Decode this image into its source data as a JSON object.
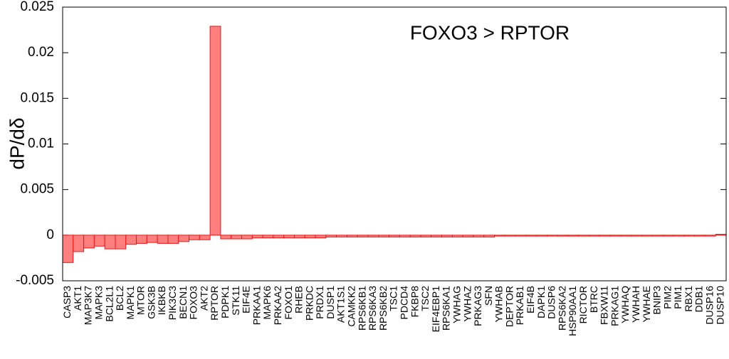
{
  "chart_data": {
    "type": "bar",
    "annotation": "FOXO3 > RPTOR",
    "y_label": "dP/dδ",
    "categories": [
      "CASP3",
      "AKT1",
      "MAP3K7",
      "MAPK3",
      "BCL2L1",
      "BCL2",
      "MAPK1",
      "MTOR",
      "GSK3B",
      "IKBKB",
      "PIK3C3",
      "BECN1",
      "FOXO3",
      "AKT2",
      "RPTOR",
      "PDPK1",
      "STK11",
      "EIF4E",
      "PRKAA1",
      "MAPK6",
      "PRKAA2",
      "FOXO1",
      "RHEB",
      "PRKDC",
      "PRDX1",
      "DUSP1",
      "AKT1S1",
      "CAMKK2",
      "RPS6KB1",
      "RPS6KA3",
      "RPS6KB2",
      "TSC1",
      "PDCD4",
      "FKBP8",
      "TSC2",
      "EIF4EBP1",
      "RPS6KA1",
      "YWHAG",
      "YWHAZ",
      "PRKAG3",
      "SFN",
      "YWHAB",
      "DEPTOR",
      "PRKAB1",
      "EIF4B",
      "DAPK1",
      "DUSP6",
      "RPS6KA2",
      "HSP90AA1",
      "RICTOR",
      "BTRC",
      "FBXW11",
      "PRKAG1",
      "YWHAQ",
      "YWHAH",
      "YWHAE",
      "BNIP3",
      "PIM2",
      "PIM1",
      "RBX1",
      "DDB1",
      "DUSP16",
      "DUSP10"
    ],
    "values": [
      -0.003,
      -0.0018,
      -0.0014,
      -0.0012,
      -0.0015,
      -0.0015,
      -0.001,
      -0.0009,
      -0.0008,
      -0.0009,
      -0.0009,
      -0.0007,
      -0.0005,
      -0.0005,
      0.0229,
      -0.0004,
      -0.0004,
      -0.0004,
      -0.0003,
      -0.0003,
      -0.0003,
      -0.0003,
      -0.0003,
      -0.0003,
      -0.0003,
      -0.0002,
      -0.0002,
      -0.0002,
      -0.0002,
      -0.0002,
      -0.0002,
      -0.0002,
      -0.0002,
      -0.0002,
      -0.0002,
      -0.0002,
      -0.0002,
      -0.0002,
      -0.0002,
      -0.0002,
      -0.0002,
      -0.0001,
      -0.0001,
      -0.0001,
      -0.0001,
      -0.0001,
      -0.0001,
      -0.0001,
      -0.0001,
      -0.0001,
      -0.0001,
      -0.0001,
      -0.0001,
      -0.0001,
      -0.0001,
      -0.0001,
      -0.0001,
      -0.0001,
      -0.0001,
      -0.0001,
      -0.0001,
      -0.0001,
      0.0001
    ],
    "color": "#ff7f7f",
    "edge_color": "#e8191a",
    "ylim": [
      -0.005,
      0.025
    ],
    "yticks": [
      -0.005,
      0,
      0.005,
      0.01,
      0.015,
      0.02,
      0.025
    ]
  }
}
